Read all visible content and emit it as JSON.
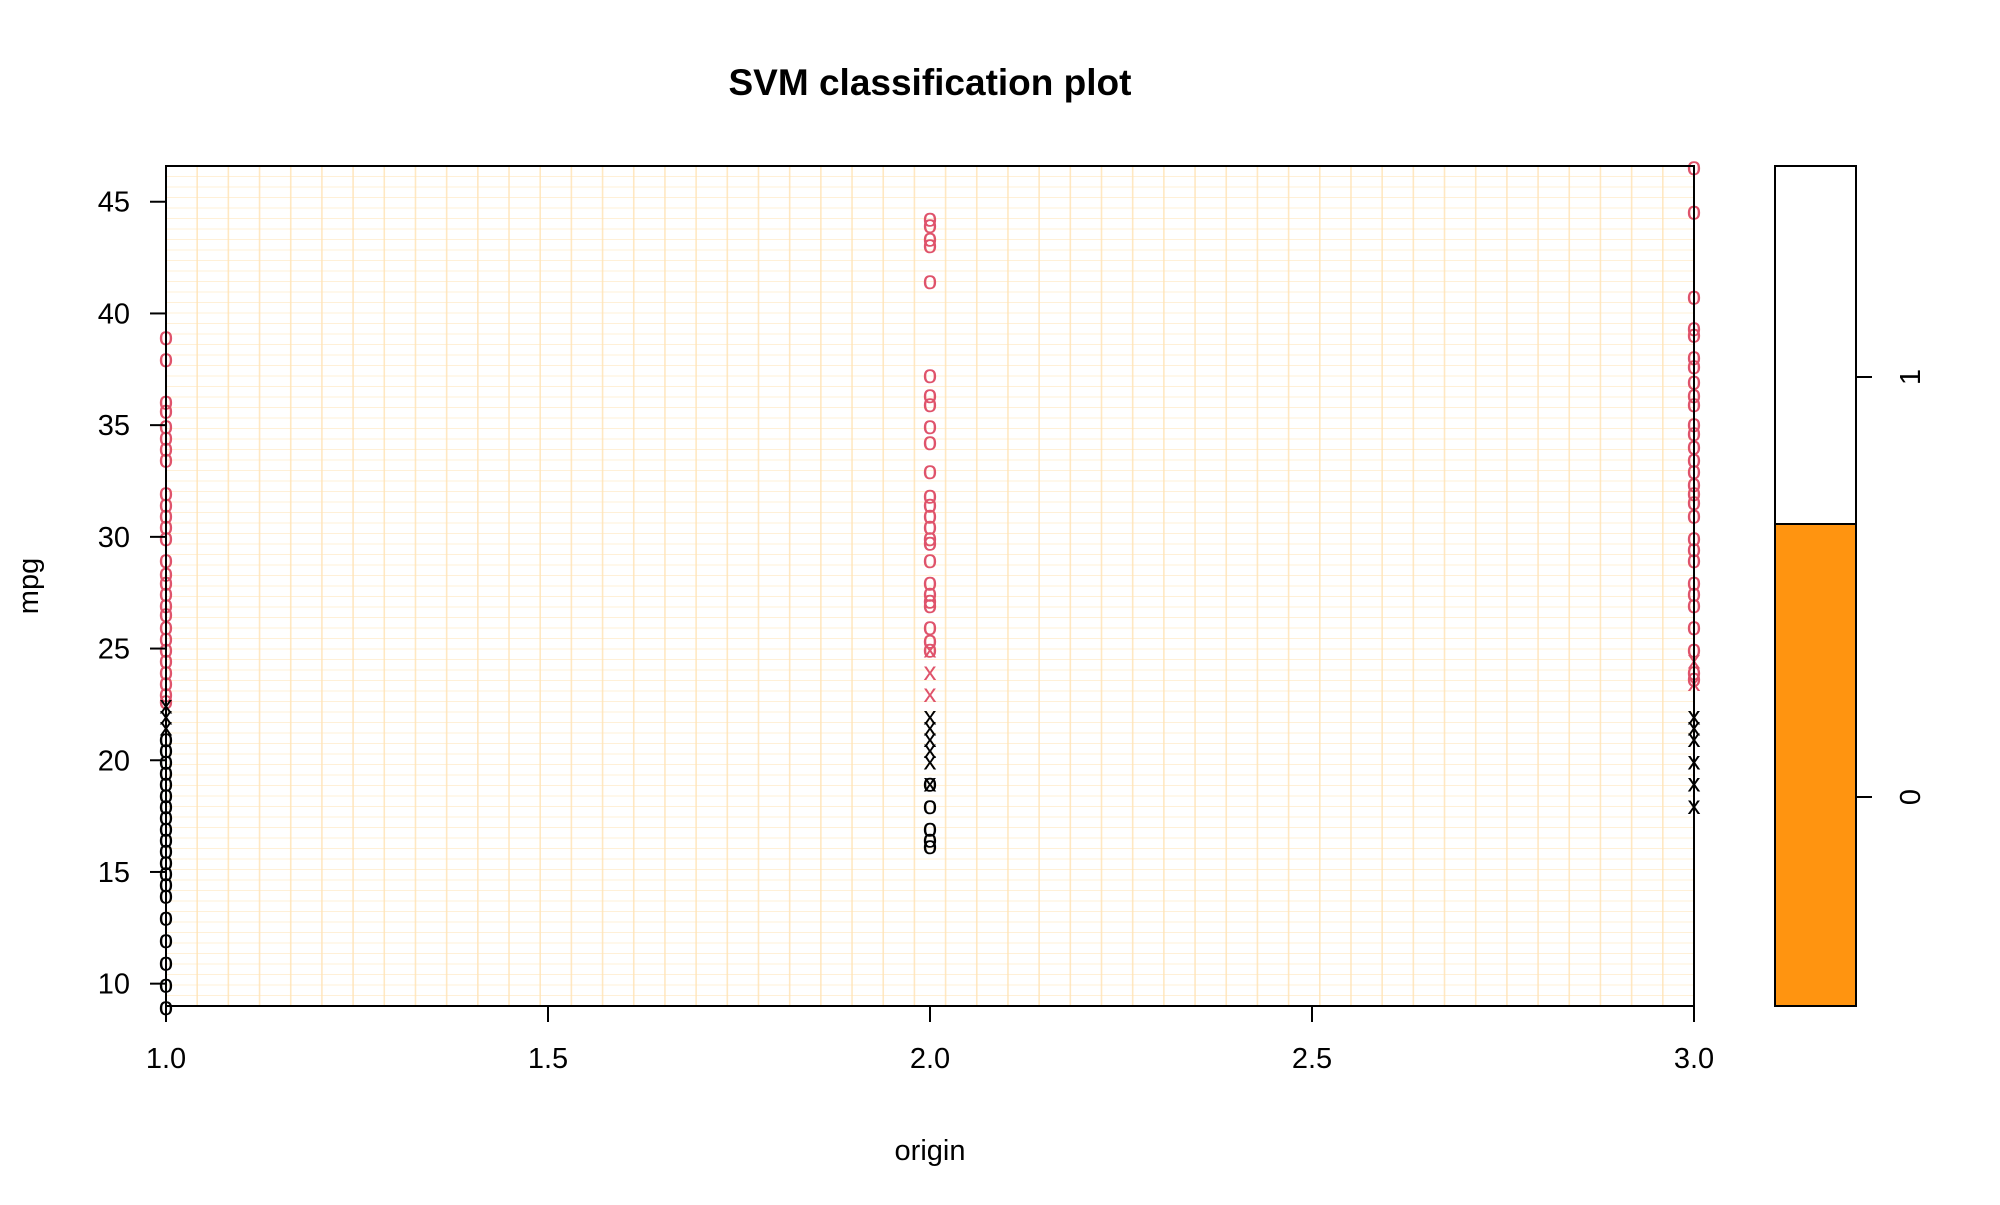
{
  "chart_data": {
    "type": "scatter",
    "title": "SVM classification plot",
    "xlabel": "origin",
    "ylabel": "mpg",
    "xlim": [
      1.0,
      3.0
    ],
    "ylim": [
      9.0,
      46.6
    ],
    "x_ticks": [
      "1.0",
      "1.5",
      "2.0",
      "2.5",
      "3.0"
    ],
    "x_tick_values": [
      1.0,
      1.5,
      2.0,
      2.5,
      3.0
    ],
    "y_ticks": [
      "10",
      "15",
      "20",
      "25",
      "30",
      "35",
      "40",
      "45"
    ],
    "y_tick_values": [
      10,
      15,
      20,
      25,
      30,
      35,
      40,
      45
    ],
    "decision_region": {
      "class": "1",
      "color": "#FFFFFF",
      "grid_color": "#FFE4B8"
    },
    "legend": {
      "position": "right",
      "zlim": [
        0,
        1
      ],
      "boundary": 0.5,
      "classes": [
        {
          "label": "0",
          "value": 0,
          "color": "#FF9410"
        },
        {
          "label": "1",
          "value": 1,
          "color": "#FFFFFF"
        }
      ]
    },
    "series": [
      {
        "class": "1",
        "marker": "o",
        "color": "#DF536B",
        "points": [
          [
            1,
            39
          ],
          [
            1,
            38
          ],
          [
            1,
            36.1
          ],
          [
            1,
            35.7
          ],
          [
            1,
            35
          ],
          [
            1,
            34.5
          ],
          [
            1,
            34
          ],
          [
            1,
            33.5
          ],
          [
            1,
            32
          ],
          [
            1,
            31.5
          ],
          [
            1,
            31
          ],
          [
            1,
            30.5
          ],
          [
            1,
            30
          ],
          [
            1,
            29
          ],
          [
            1,
            28.4
          ],
          [
            1,
            28
          ],
          [
            1,
            27.5
          ],
          [
            1,
            27
          ],
          [
            1,
            26.6
          ],
          [
            1,
            26
          ],
          [
            1,
            25.5
          ],
          [
            1,
            25
          ],
          [
            1,
            24.5
          ],
          [
            1,
            24
          ],
          [
            1,
            23.5
          ],
          [
            1,
            23
          ],
          [
            1,
            22.7
          ],
          [
            2,
            44.3
          ],
          [
            2,
            44
          ],
          [
            2,
            43.4
          ],
          [
            2,
            43.1
          ],
          [
            2,
            41.5
          ],
          [
            2,
            37.3
          ],
          [
            2,
            36.4
          ],
          [
            2,
            36
          ],
          [
            2,
            35
          ],
          [
            2,
            34.3
          ],
          [
            2,
            33
          ],
          [
            2,
            31.9
          ],
          [
            2,
            31.5
          ],
          [
            2,
            31
          ],
          [
            2,
            30.5
          ],
          [
            2,
            30
          ],
          [
            2,
            29.8
          ],
          [
            2,
            29
          ],
          [
            2,
            28
          ],
          [
            2,
            27.5
          ],
          [
            2,
            27.2
          ],
          [
            2,
            27
          ],
          [
            2,
            26
          ],
          [
            2,
            25.4
          ],
          [
            2,
            25
          ],
          [
            3,
            46.6
          ],
          [
            3,
            44.6
          ],
          [
            3,
            40.8
          ],
          [
            3,
            39.4
          ],
          [
            3,
            39.1
          ],
          [
            3,
            38.1
          ],
          [
            3,
            37.7
          ],
          [
            3,
            37
          ],
          [
            3,
            36.4
          ],
          [
            3,
            36
          ],
          [
            3,
            35.1
          ],
          [
            3,
            34.7
          ],
          [
            3,
            34.1
          ],
          [
            3,
            33.5
          ],
          [
            3,
            33
          ],
          [
            3,
            32.4
          ],
          [
            3,
            32
          ],
          [
            3,
            31.6
          ],
          [
            3,
            31
          ],
          [
            3,
            30
          ],
          [
            3,
            29.5
          ],
          [
            3,
            29
          ],
          [
            3,
            28
          ],
          [
            3,
            27.5
          ],
          [
            3,
            27
          ],
          [
            3,
            26
          ],
          [
            3,
            25
          ],
          [
            3,
            24
          ],
          [
            3,
            23.7
          ]
        ]
      },
      {
        "class": "1",
        "marker": "x",
        "color": "#DF536B",
        "points": [
          [
            2,
            25
          ],
          [
            2,
            24
          ],
          [
            2,
            23
          ],
          [
            3,
            24.5
          ],
          [
            3,
            23.5
          ]
        ]
      },
      {
        "class": "0",
        "marker": "x",
        "color": "#000000",
        "points": [
          [
            1,
            22.5
          ],
          [
            1,
            22
          ],
          [
            1,
            21.5
          ],
          [
            2,
            22
          ],
          [
            2,
            21.5
          ],
          [
            2,
            21
          ],
          [
            2,
            20.5
          ],
          [
            2,
            20
          ],
          [
            2,
            19
          ],
          [
            3,
            22
          ],
          [
            3,
            21.5
          ],
          [
            3,
            21
          ],
          [
            3,
            20
          ],
          [
            3,
            19
          ],
          [
            3,
            18
          ]
        ]
      },
      {
        "class": "0",
        "marker": "o",
        "color": "#000000",
        "points": [
          [
            1,
            21
          ],
          [
            1,
            20.5
          ],
          [
            1,
            20
          ],
          [
            1,
            19.5
          ],
          [
            1,
            19
          ],
          [
            1,
            18.5
          ],
          [
            1,
            18
          ],
          [
            1,
            17.5
          ],
          [
            1,
            17
          ],
          [
            1,
            16.5
          ],
          [
            1,
            16
          ],
          [
            1,
            15.5
          ],
          [
            1,
            15
          ],
          [
            1,
            14.5
          ],
          [
            1,
            14
          ],
          [
            1,
            13
          ],
          [
            1,
            12
          ],
          [
            1,
            11
          ],
          [
            1,
            10
          ],
          [
            1,
            9
          ],
          [
            2,
            19
          ],
          [
            2,
            18
          ],
          [
            2,
            17
          ],
          [
            2,
            16.5
          ],
          [
            2,
            16.2
          ]
        ]
      }
    ]
  }
}
